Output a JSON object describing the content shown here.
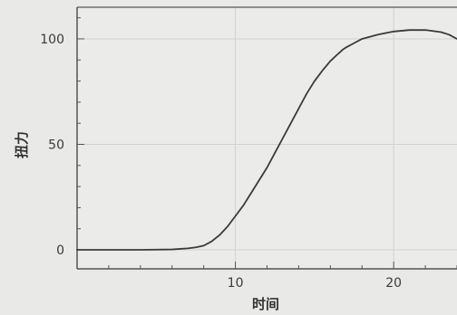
{
  "chart_data": {
    "type": "line",
    "title": "",
    "xlabel": "时间",
    "ylabel": "扭力",
    "xlim": [
      0,
      24
    ],
    "ylim": [
      -9,
      115
    ],
    "xticks": [
      10,
      20
    ],
    "yticks": [
      0,
      50,
      100
    ],
    "xtick_labels": [
      "10",
      "20"
    ],
    "ytick_labels": [
      "0",
      "50",
      "100"
    ],
    "grid": true,
    "legend": "none",
    "colors": {
      "line": "#3a3a3a",
      "axis": "#555555",
      "grid": "#d2d2d0",
      "background": "#e9e9e7",
      "plot_background": "#ebebe9"
    },
    "series": [
      {
        "x": [
          0,
          2,
          4,
          6,
          7,
          7.5,
          8,
          8.5,
          9,
          9.5,
          10,
          10.5,
          11,
          11.5,
          12,
          12.5,
          13,
          13.5,
          14,
          14.5,
          15,
          15.5,
          16,
          16.5,
          16.8,
          17,
          17.5,
          18,
          18.5,
          19,
          20,
          21,
          22,
          23,
          23.5,
          24
        ],
        "y": [
          0,
          0,
          0,
          0.2,
          0.7,
          1.2,
          2,
          4,
          7,
          11,
          16,
          21,
          27,
          33,
          39,
          46,
          53,
          60,
          67,
          74,
          80,
          85,
          89.5,
          93,
          95,
          96,
          98,
          100,
          101,
          102,
          103.5,
          104.2,
          104.2,
          103.2,
          102,
          100
        ]
      }
    ]
  }
}
